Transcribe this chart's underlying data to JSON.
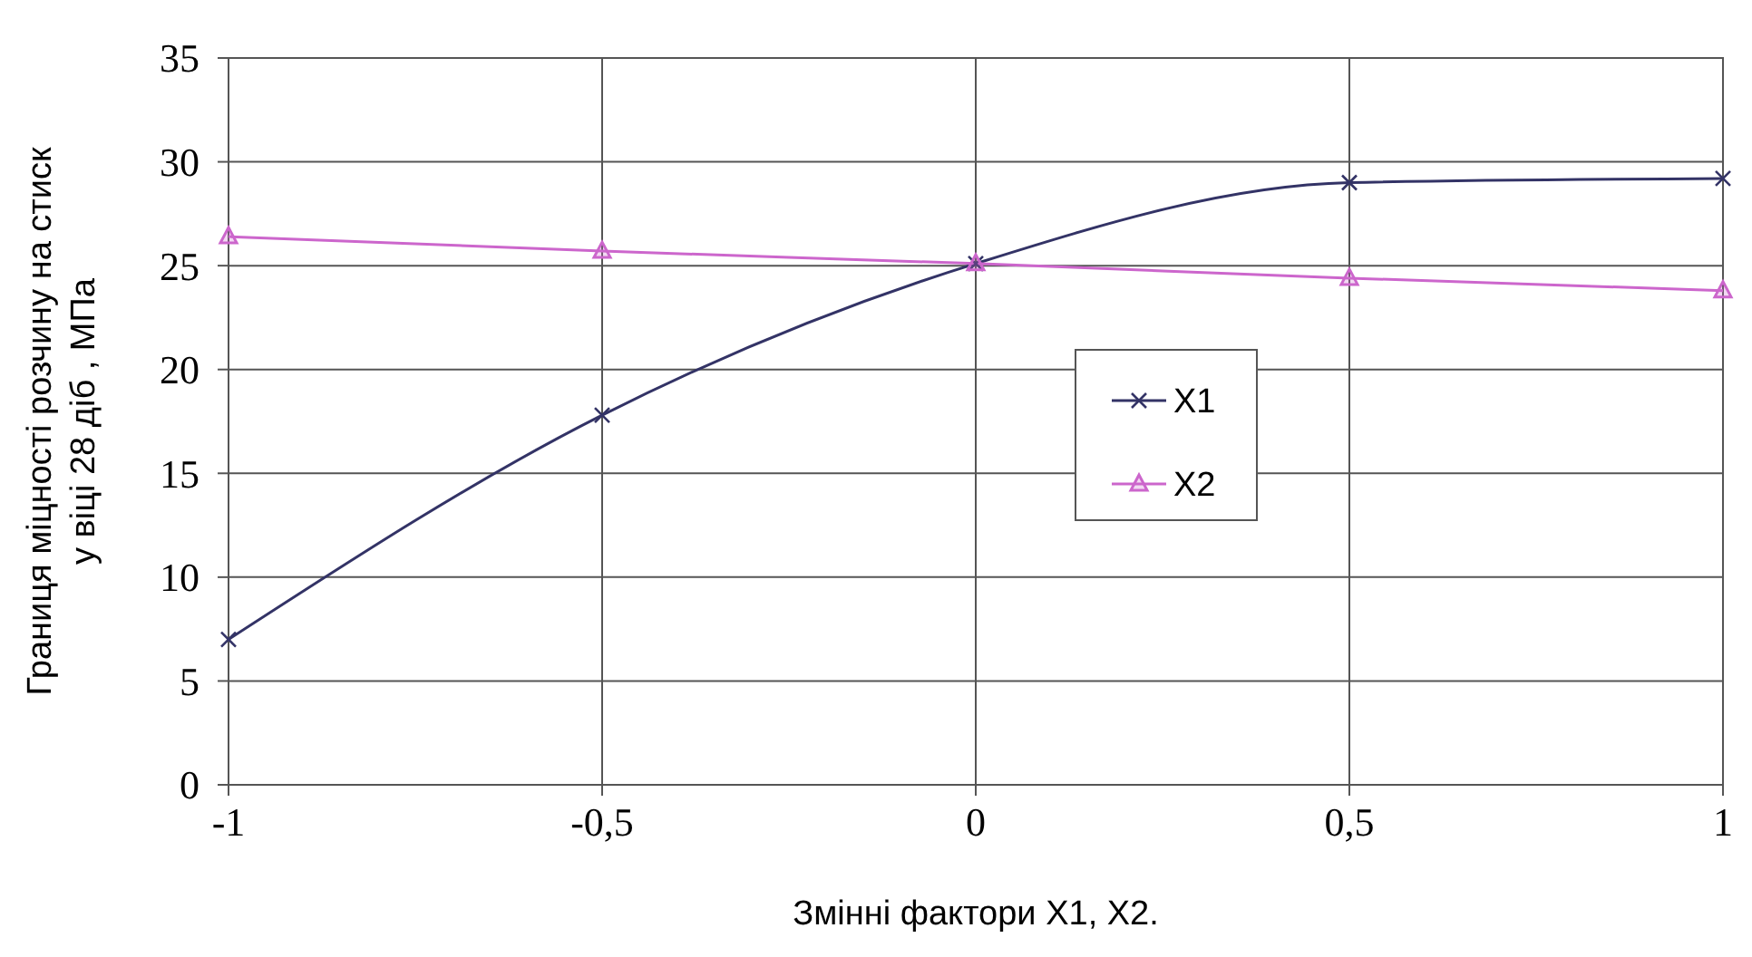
{
  "chart_data": {
    "type": "line",
    "xlabel": "Змінні фактори  X1, X2.",
    "ylabel": "Границя міцності розчину на стиск\nу віці 28 діб , МПа",
    "x": [
      -1,
      -0.5,
      0,
      0.5,
      1
    ],
    "series": [
      {
        "name": "X1",
        "color": "#333366",
        "values": [
          7,
          17.8,
          25.1,
          29,
          29.2
        ],
        "marker": "cross"
      },
      {
        "name": "X2",
        "color": "#cc66cc",
        "values": [
          26.4,
          25.7,
          25.1,
          24.4,
          23.8
        ],
        "marker": "triangle"
      }
    ],
    "xlim": [
      -1,
      1
    ],
    "xticks": [
      -1,
      {
        "value": -0.5,
        "label": "-0,5"
      },
      0,
      {
        "value": 0.5,
        "label": "0,5"
      },
      1
    ],
    "ylim": [
      0,
      35
    ],
    "yticks": [
      0,
      5,
      10,
      15,
      20,
      25,
      30,
      35
    ],
    "grid": true,
    "legend": "right",
    "line_style": "solid"
  }
}
